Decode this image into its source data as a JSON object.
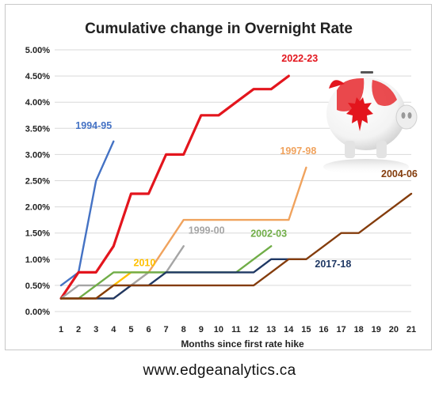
{
  "footer": {
    "source": "www.edgeanalytics.ca"
  },
  "chart_data": {
    "type": "line",
    "title": "Cumulative change in Overnight Rate",
    "xlabel": "Months since first rate hike",
    "ylabel": "",
    "x": [
      1,
      2,
      3,
      4,
      5,
      6,
      7,
      8,
      9,
      10,
      11,
      12,
      13,
      14,
      15,
      16,
      17,
      18,
      19,
      20,
      21
    ],
    "xlim": [
      1,
      21
    ],
    "ylim": [
      0,
      5
    ],
    "y_ticks": [
      "0.00%",
      "0.50%",
      "1.00%",
      "1.50%",
      "2.00%",
      "2.50%",
      "3.00%",
      "3.50%",
      "4.00%",
      "4.50%",
      "5.00%"
    ],
    "grid": "horizontal",
    "legend": "inline labels next to each line",
    "decoration": "piggy-bank-canada-flag",
    "series": [
      {
        "name": "1994-95",
        "color": "#4472c4",
        "points": [
          [
            1,
            0.5
          ],
          [
            2,
            0.75
          ],
          [
            3,
            2.5
          ],
          [
            4,
            3.25
          ]
        ]
      },
      {
        "name": "2022-23",
        "color": "#e3151d",
        "points": [
          [
            1,
            0.25
          ],
          [
            2,
            0.75
          ],
          [
            3,
            0.75
          ],
          [
            4,
            1.25
          ],
          [
            5,
            2.25
          ],
          [
            6,
            2.25
          ],
          [
            7,
            3.0
          ],
          [
            8,
            3.0
          ],
          [
            9,
            3.75
          ],
          [
            10,
            3.75
          ],
          [
            11,
            4.0
          ],
          [
            12,
            4.25
          ],
          [
            13,
            4.25
          ],
          [
            14,
            4.5
          ]
        ]
      },
      {
        "name": "1997-98",
        "color": "#f0a35e",
        "points": [
          [
            1,
            0.25
          ],
          [
            2,
            0.25
          ],
          [
            3,
            0.25
          ],
          [
            4,
            0.25
          ],
          [
            5,
            0.5
          ],
          [
            6,
            0.75
          ],
          [
            7,
            1.25
          ],
          [
            8,
            1.75
          ],
          [
            9,
            1.75
          ],
          [
            10,
            1.75
          ],
          [
            11,
            1.75
          ],
          [
            12,
            1.75
          ],
          [
            13,
            1.75
          ],
          [
            14,
            1.75
          ],
          [
            15,
            2.75
          ]
        ]
      },
      {
        "name": "1999-00",
        "color": "#a5a5a5",
        "points": [
          [
            1,
            0.25
          ],
          [
            2,
            0.5
          ],
          [
            3,
            0.5
          ],
          [
            4,
            0.5
          ],
          [
            5,
            0.5
          ],
          [
            6,
            0.75
          ],
          [
            7,
            0.75
          ],
          [
            8,
            1.25
          ]
        ]
      },
      {
        "name": "2010",
        "color": "#ffc000",
        "points": [
          [
            1,
            0.25
          ],
          [
            2,
            0.25
          ],
          [
            3,
            0.25
          ],
          [
            4,
            0.5
          ],
          [
            5,
            0.75
          ],
          [
            6,
            0.75
          ]
        ]
      },
      {
        "name": "2002-03",
        "color": "#70ad47",
        "points": [
          [
            1,
            0.25
          ],
          [
            2,
            0.25
          ],
          [
            3,
            0.5
          ],
          [
            4,
            0.75
          ],
          [
            5,
            0.75
          ],
          [
            6,
            0.75
          ],
          [
            7,
            0.75
          ],
          [
            8,
            0.75
          ],
          [
            9,
            0.75
          ],
          [
            10,
            0.75
          ],
          [
            11,
            0.75
          ],
          [
            12,
            1.0
          ],
          [
            13,
            1.25
          ]
        ]
      },
      {
        "name": "2017-18",
        "color": "#1f3864",
        "points": [
          [
            1,
            0.25
          ],
          [
            2,
            0.25
          ],
          [
            3,
            0.25
          ],
          [
            4,
            0.25
          ],
          [
            5,
            0.5
          ],
          [
            6,
            0.5
          ],
          [
            7,
            0.75
          ],
          [
            8,
            0.75
          ],
          [
            9,
            0.75
          ],
          [
            10,
            0.75
          ],
          [
            11,
            0.75
          ],
          [
            12,
            0.75
          ],
          [
            13,
            1.0
          ],
          [
            14,
            1.0
          ],
          [
            15,
            1.0
          ]
        ]
      },
      {
        "name": "2004-06",
        "color": "#843c0c",
        "points": [
          [
            1,
            0.25
          ],
          [
            2,
            0.25
          ],
          [
            3,
            0.25
          ],
          [
            4,
            0.5
          ],
          [
            5,
            0.5
          ],
          [
            6,
            0.5
          ],
          [
            7,
            0.5
          ],
          [
            8,
            0.5
          ],
          [
            9,
            0.5
          ],
          [
            10,
            0.5
          ],
          [
            11,
            0.5
          ],
          [
            12,
            0.5
          ],
          [
            13,
            0.75
          ],
          [
            14,
            1.0
          ],
          [
            15,
            1.0
          ],
          [
            16,
            1.25
          ],
          [
            17,
            1.5
          ],
          [
            18,
            1.5
          ],
          [
            19,
            1.75
          ],
          [
            20,
            2.0
          ],
          [
            21,
            2.25
          ]
        ]
      }
    ]
  }
}
